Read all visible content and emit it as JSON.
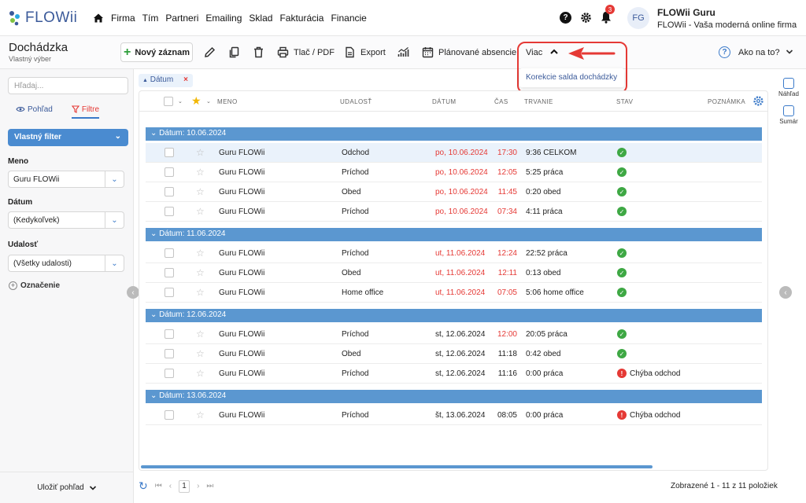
{
  "app": {
    "name": "FLOWii"
  },
  "nav": {
    "items": [
      "Firma",
      "Tím",
      "Partneri",
      "Emailing",
      "Sklad",
      "Fakturácia",
      "Financie"
    ]
  },
  "top": {
    "notif_count": "3",
    "avatar_initials": "FG",
    "user_name": "FLOWii Guru",
    "user_sub": "FLOWii - Vaša moderná online firma"
  },
  "page": {
    "title": "Dochádzka",
    "subtitle": "Vlastný výber"
  },
  "toolbar": {
    "new_label": "Nový záznam",
    "print_label": "Tlač / PDF",
    "export_label": "Export",
    "absence_label": "Plánované absencie",
    "more_label": "Viac",
    "more_item": "Korekcie salda dochádzky",
    "help_label": "Ako na to?"
  },
  "sidebar": {
    "search_placeholder": "Hľadaj...",
    "tab_view": "Pohľad",
    "tab_filters": "Filtre",
    "custom_filter": "Vlastný filter",
    "f_name_label": "Meno",
    "f_name_value": "Guru FLOWii",
    "f_date_label": "Dátum",
    "f_date_value": "(Kedykoľvek)",
    "f_event_label": "Udalosť",
    "f_event_value": "(Všetky udalosti)",
    "marking": "Označenie",
    "save_view": "Uložiť pohľad"
  },
  "right": {
    "preview": "Náhľad",
    "summary": "Sumár"
  },
  "grid": {
    "chip": "Dátum",
    "headers": [
      "MENO",
      "UDALOSŤ",
      "DÁTUM",
      "ČAS",
      "TRVANIE",
      "STAV",
      "POZNÁMKA"
    ],
    "groups": [
      {
        "label": "Dátum: 10.06.2024",
        "rows": [
          {
            "name": "Guru FLOWii",
            "event": "Odchod",
            "date": "po, 10.06.2024",
            "time": "17:30",
            "duration": "9:36 CELKOM",
            "status": "ok",
            "status_text": "",
            "red": true,
            "selected": true
          },
          {
            "name": "Guru FLOWii",
            "event": "Príchod",
            "date": "po, 10.06.2024",
            "time": "12:05",
            "duration": "5:25 práca",
            "status": "ok",
            "status_text": "",
            "red": true
          },
          {
            "name": "Guru FLOWii",
            "event": "Obed",
            "date": "po, 10.06.2024",
            "time": "11:45",
            "duration": "0:20 obed",
            "status": "ok",
            "status_text": "",
            "red": true
          },
          {
            "name": "Guru FLOWii",
            "event": "Príchod",
            "date": "po, 10.06.2024",
            "time": "07:34",
            "duration": "4:11 práca",
            "status": "ok",
            "status_text": "",
            "red": true
          }
        ]
      },
      {
        "label": "Dátum: 11.06.2024",
        "rows": [
          {
            "name": "Guru FLOWii",
            "event": "Príchod",
            "date": "ut, 11.06.2024",
            "time": "12:24",
            "duration": "22:52 práca",
            "status": "ok",
            "status_text": "",
            "red": true
          },
          {
            "name": "Guru FLOWii",
            "event": "Obed",
            "date": "ut, 11.06.2024",
            "time": "12:11",
            "duration": "0:13 obed",
            "status": "ok",
            "status_text": "",
            "red": true
          },
          {
            "name": "Guru FLOWii",
            "event": "Home office",
            "date": "ut, 11.06.2024",
            "time": "07:05",
            "duration": "5:06 home office",
            "status": "ok",
            "status_text": "",
            "red": true
          }
        ]
      },
      {
        "label": "Dátum: 12.06.2024",
        "rows": [
          {
            "name": "Guru FLOWii",
            "event": "Príchod",
            "date": "st, 12.06.2024",
            "time": "12:00",
            "duration": "20:05 práca",
            "status": "ok",
            "status_text": "",
            "red": false,
            "time_red": true
          },
          {
            "name": "Guru FLOWii",
            "event": "Obed",
            "date": "st, 12.06.2024",
            "time": "11:18",
            "duration": "0:42 obed",
            "status": "ok",
            "status_text": "",
            "red": false
          },
          {
            "name": "Guru FLOWii",
            "event": "Príchod",
            "date": "st, 12.06.2024",
            "time": "11:16",
            "duration": "0:00 práca",
            "status": "err",
            "status_text": "Chýba odchod",
            "red": false
          }
        ]
      },
      {
        "label": "Dátum: 13.06.2024",
        "rows": [
          {
            "name": "Guru FLOWii",
            "event": "Príchod",
            "date": "št, 13.06.2024",
            "time": "08:05",
            "duration": "0:00 práca",
            "status": "err",
            "status_text": "Chýba odchod",
            "red": false
          }
        ]
      }
    ]
  },
  "pager": {
    "page": "1",
    "count_text": "Zobrazené 1 - 11 z 11 položiek"
  }
}
